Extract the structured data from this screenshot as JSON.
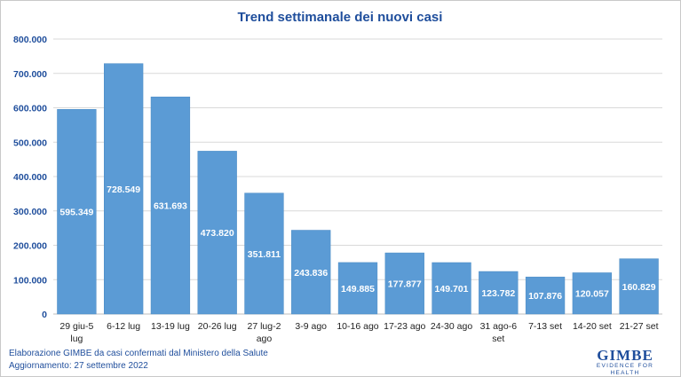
{
  "chart_data": {
    "type": "bar",
    "title": "Trend settimanale dei nuovi casi",
    "categories": [
      [
        "29 giu-5",
        "lug"
      ],
      [
        "6-12 lug"
      ],
      [
        "13-19 lug"
      ],
      [
        "20-26 lug"
      ],
      [
        "27 lug-2",
        "ago"
      ],
      [
        "3-9 ago"
      ],
      [
        "10-16 ago"
      ],
      [
        "17-23 ago"
      ],
      [
        "24-30 ago"
      ],
      [
        "31 ago-6",
        "set"
      ],
      [
        "7-13 set"
      ],
      [
        "14-20 set"
      ],
      [
        "21-27 set"
      ]
    ],
    "values": [
      595349,
      728549,
      631693,
      473820,
      351811,
      243836,
      149885,
      177877,
      149701,
      123782,
      107876,
      120057,
      160829
    ],
    "value_labels": [
      "595.349",
      "728.549",
      "631.693",
      "473.820",
      "351.811",
      "243.836",
      "149.885",
      "177.877",
      "149.701",
      "123.782",
      "107.876",
      "120.057",
      "160.829"
    ],
    "y_ticks": [
      "0",
      "100.000",
      "200.000",
      "300.000",
      "400.000",
      "500.000",
      "600.000",
      "700.000",
      "800.000"
    ],
    "ylim": [
      0,
      800000
    ],
    "grid": true,
    "legend": "none",
    "colors": {
      "bar": "#5b9bd5",
      "bar_edge": "#4a8ac4",
      "title": "#1f4e9c",
      "grid": "#d9d9d9",
      "axis_text": "#1f4e9c"
    }
  },
  "footer": {
    "line1": "Elaborazione GIMBE da casi confermati dal Ministero della Salute",
    "line2": "Aggiornamento: 27 settembre 2022"
  },
  "logo": {
    "brand": "GIMBE",
    "tagline": "EVIDENCE FOR HEALTH"
  }
}
